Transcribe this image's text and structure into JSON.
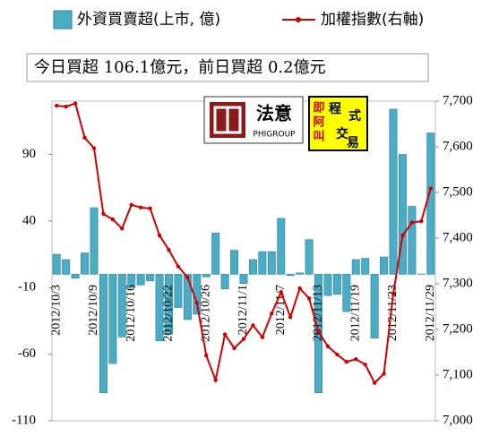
{
  "chart_data": {
    "type": "bar_line",
    "legend": [
      "外資買賣超(上市, 億)",
      "加權指數(右軸)"
    ],
    "annotation": "今日買超 106.1億元，前日買超 0.2億元",
    "logo1": {
      "name": "法意",
      "sub": "PHIGROUP"
    },
    "logo2": {
      "left": [
        "即",
        "阿",
        "叫"
      ],
      "right": [
        "程",
        "式",
        "交",
        "易"
      ]
    },
    "categories": [
      "2012/10/3",
      null,
      null,
      null,
      "2012/10/9",
      null,
      null,
      null,
      "2012/10/16",
      null,
      null,
      null,
      "2012/10/22",
      null,
      null,
      null,
      "2012/10/26",
      null,
      null,
      null,
      "2012/11/1",
      null,
      null,
      null,
      "2012/11/7",
      null,
      null,
      null,
      "2012/11/13",
      null,
      null,
      null,
      "2012/11/19",
      null,
      null,
      null,
      "2012/11/23",
      null,
      null,
      null,
      "2012/11/29"
    ],
    "series": [
      {
        "name": "外資買賣超(上市, 億)",
        "color": "#4bacc6",
        "axis": "y",
        "values": [
          15,
          11,
          -3,
          16,
          50,
          -89,
          -67,
          -47,
          -10,
          -8,
          -5,
          -50,
          -45,
          -25,
          -34,
          -30,
          -2,
          31,
          -11,
          18,
          -7,
          11,
          17,
          17,
          42,
          -1,
          1,
          26,
          -89,
          -16,
          -15,
          -28,
          11,
          12,
          -48,
          13,
          124,
          90,
          51,
          0.2,
          106.1
        ]
      },
      {
        "name": "加權指數(右軸)",
        "color": "#d00000",
        "axis": "y2",
        "values": [
          7690,
          7688,
          7695,
          7620,
          7597,
          7453,
          7441,
          7421,
          7473,
          7467,
          7465,
          7406,
          7374,
          7338,
          7314,
          7258,
          7143,
          7089,
          7189,
          7159,
          7179,
          7209,
          7183,
          7235,
          7282,
          7227,
          7290,
          7268,
          7195,
          7163,
          7145,
          7129,
          7135,
          7123,
          7083,
          7103,
          7278,
          7406,
          7434,
          7437,
          7509
        ]
      }
    ],
    "ylim": [
      -110,
      130
    ],
    "yticks": [
      -110,
      -60,
      -10,
      40,
      90
    ],
    "y2lim": [
      7000,
      7700
    ],
    "y2ticks": [
      {
        "value": 7000,
        "label": "7,000"
      },
      {
        "value": 7100,
        "label": "7,100"
      },
      {
        "value": 7200,
        "label": "7,200"
      },
      {
        "value": 7300,
        "label": "7,300"
      },
      {
        "value": 7400,
        "label": "7,400"
      },
      {
        "value": 7500,
        "label": "7,500"
      },
      {
        "value": 7600,
        "label": "7,600"
      },
      {
        "value": 7700,
        "label": "7,700"
      }
    ]
  }
}
